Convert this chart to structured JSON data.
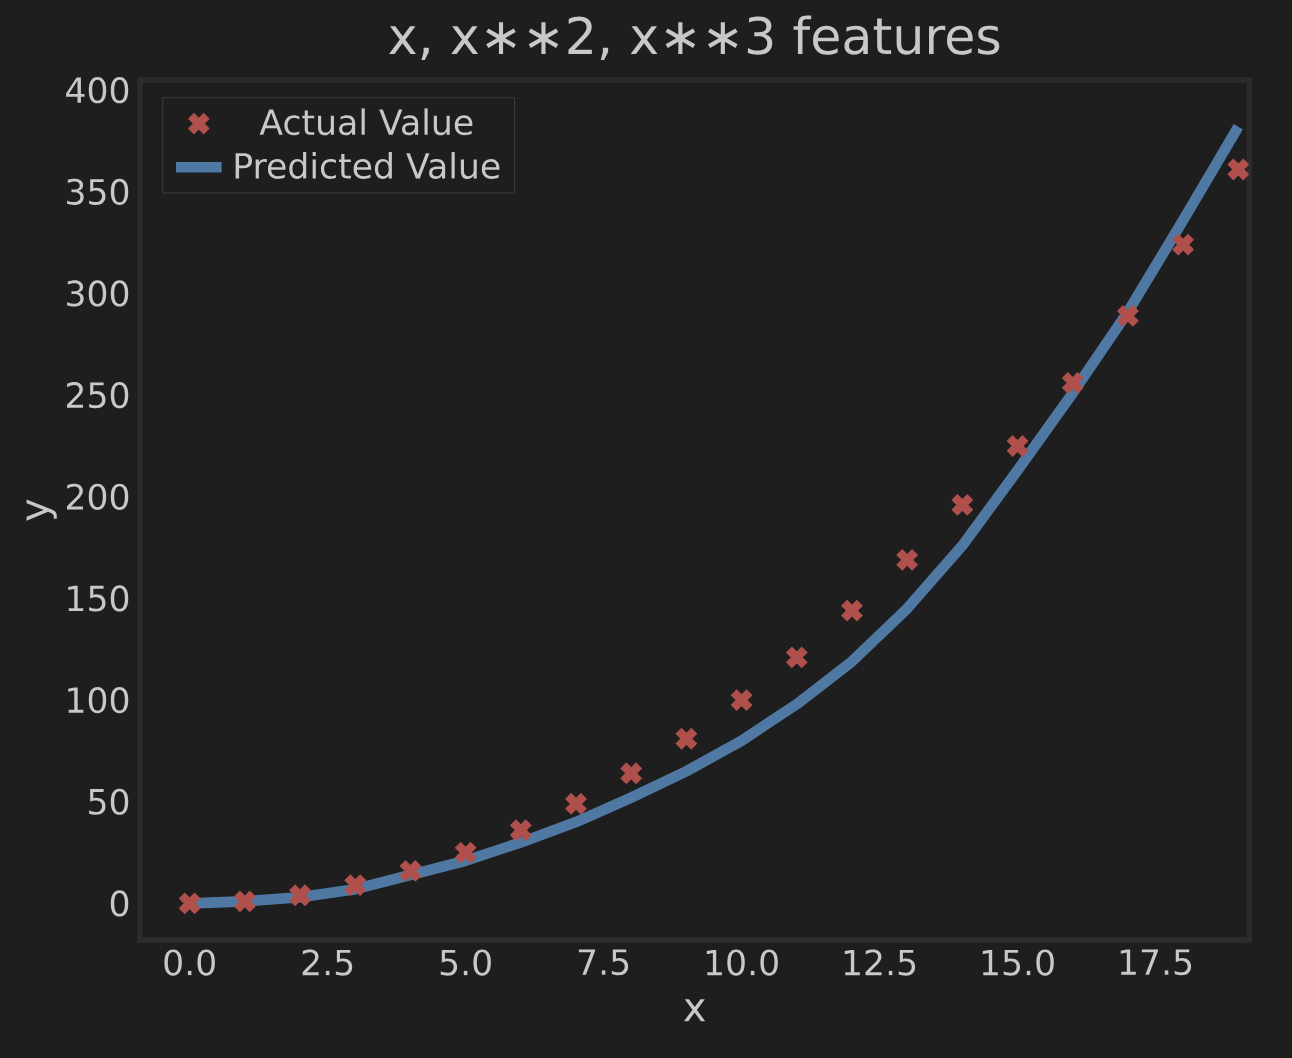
{
  "chart_data": {
    "type": "scatter",
    "title": "x, x∗∗2, x∗∗3 features",
    "xlabel": "x",
    "ylabel": "y",
    "x": [
      0,
      1,
      2,
      3,
      4,
      5,
      6,
      7,
      8,
      9,
      10,
      11,
      12,
      13,
      14,
      15,
      16,
      17,
      18,
      19
    ],
    "series": [
      {
        "name": "Actual Value",
        "marker": "cross",
        "color": "#b0504c",
        "values": [
          0,
          1,
          4,
          9,
          16,
          25,
          36,
          49,
          64,
          81,
          100,
          121,
          144,
          169,
          196,
          225,
          256,
          289,
          324,
          361
        ]
      },
      {
        "name": "Predicted Value",
        "type": "line",
        "marker": "none",
        "line_style": "solid",
        "color": "#4f79a3",
        "values": [
          0,
          1,
          3,
          7,
          14,
          21,
          30,
          40,
          52,
          65,
          80,
          98,
          119,
          145,
          176,
          213,
          251,
          291,
          336,
          382
        ]
      }
    ],
    "xlim": [
      -0.9,
      19.2
    ],
    "ylim": [
      -18,
      405
    ],
    "xticks": [
      {
        "value": 0,
        "label": "0.0"
      },
      {
        "value": 2.5,
        "label": "2.5"
      },
      {
        "value": 5,
        "label": "5.0"
      },
      {
        "value": 7.5,
        "label": "7.5"
      },
      {
        "value": 10,
        "label": "10.0"
      },
      {
        "value": 12.5,
        "label": "12.5"
      },
      {
        "value": 15,
        "label": "15.0"
      },
      {
        "value": 17.5,
        "label": "17.5"
      }
    ],
    "yticks": [
      0,
      50,
      100,
      150,
      200,
      250,
      300,
      350,
      400
    ],
    "grid": false,
    "legend": "top left"
  }
}
